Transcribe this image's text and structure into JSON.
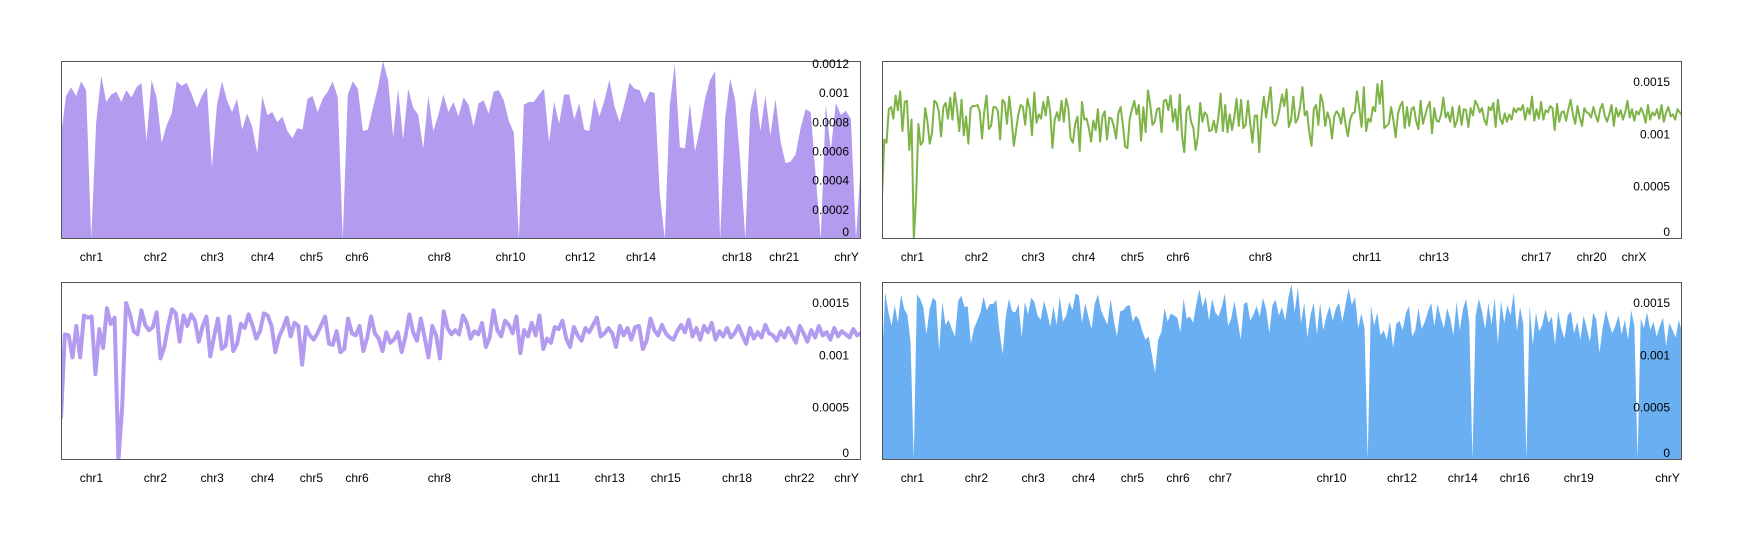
{
  "chart_data": [
    {
      "type": "area",
      "color": "#b39bf0",
      "ylim": [
        0,
        0.00122
      ],
      "yticks": [
        "0",
        "0.0002",
        "0.0004",
        "0.0006",
        "0.0008",
        "0.001",
        "0.0012"
      ],
      "xticks": [
        "chr1",
        "chr2",
        "chr3",
        "chr4",
        "chr5",
        "chr6",
        "chr8",
        "chr10",
        "chr12",
        "chr14",
        "chr18",
        "chr21",
        "chrY"
      ],
      "y": [
        0.00071,
        0.00098,
        0.00104,
        0.00098,
        0.00108,
        0.00102,
        0.0,
        0.0008,
        0.00112,
        0.00094,
        0.00099,
        0.00101,
        0.00094,
        0.00102,
        0.00097,
        0.00104,
        0.00107,
        0.00067,
        0.00109,
        0.00097,
        0.00066,
        0.00078,
        0.00086,
        0.00108,
        0.00105,
        0.00107,
        0.00099,
        0.0009,
        0.00098,
        0.00104,
        0.00049,
        0.00092,
        0.00108,
        0.00095,
        0.00087,
        0.00096,
        0.00075,
        0.00086,
        0.00077,
        0.00059,
        0.00098,
        0.00085,
        0.00087,
        0.0008,
        0.00084,
        0.00074,
        0.00069,
        0.00076,
        0.00075,
        0.00096,
        0.00098,
        0.00087,
        0.00096,
        0.00101,
        0.00108,
        0.00097,
        0.0,
        0.00099,
        0.00108,
        0.00103,
        0.00074,
        0.00075,
        0.0009,
        0.00104,
        0.00122,
        0.00109,
        0.0007,
        0.00103,
        0.00068,
        0.00103,
        0.0009,
        0.00085,
        0.00062,
        0.00098,
        0.00074,
        0.00085,
        0.00099,
        0.00087,
        0.00094,
        0.00084,
        0.00097,
        0.00092,
        0.00077,
        0.00093,
        0.00095,
        0.00086,
        0.00101,
        0.00102,
        0.00095,
        0.00081,
        0.00073,
        0.0,
        0.00092,
        0.00094,
        0.00094,
        0.00099,
        0.00103,
        0.00066,
        0.00094,
        0.00079,
        0.00099,
        0.00099,
        0.00082,
        0.00093,
        0.00075,
        0.00074,
        0.00097,
        0.00084,
        0.00095,
        0.00109,
        0.00091,
        0.0008,
        0.00093,
        0.00107,
        0.00103,
        0.00102,
        0.00093,
        0.00101,
        0.001,
        0.00031,
        0.0,
        0.00092,
        0.0012,
        0.00063,
        0.00062,
        0.00093,
        0.0006,
        0.00076,
        0.00096,
        0.00109,
        0.00115,
        0.0,
        0.00083,
        0.0011,
        0.00095,
        0.00053,
        0.0,
        0.00088,
        0.00104,
        0.00074,
        0.00098,
        0.00071,
        0.00096,
        0.00067,
        0.00052,
        0.00053,
        0.00058,
        0.00076,
        0.00089,
        0.00087,
        0.00043,
        0.0,
        0.00092,
        0.00061,
        0.00093,
        0.00085,
        0.00088,
        0.00082,
        0.0,
        0.00053
      ]
    },
    {
      "type": "line",
      "color": "#7eb347",
      "ylim": [
        0,
        0.0017
      ],
      "yticks": [
        "0",
        "0.0005",
        "0.001",
        "0.0015"
      ],
      "xticks": [
        "chr1",
        "chr2",
        "chr3",
        "chr4",
        "chr5",
        "chr6",
        "chr8",
        "chr11",
        "chr13",
        "chr17",
        "chr20",
        "chrX"
      ],
      "y": [
        0.0004,
        0.00095,
        0.00092,
        0.00124,
        0.00126,
        0.00115,
        0.00137,
        0.00123,
        0.00141,
        0.00103,
        0.00131,
        0.00132,
        0.00085,
        0.00114,
        0.0,
        0.00039,
        0.0011,
        0.0009,
        0.00093,
        0.00125,
        0.00112,
        0.00091,
        0.00101,
        0.00132,
        0.0013,
        0.00122,
        0.00098,
        0.00126,
        0.0013,
        0.00115,
        0.00135,
        0.00114,
        0.0014,
        0.00125,
        0.00103,
        0.00133,
        0.00099,
        0.00117,
        0.00091,
        0.00125,
        0.00127,
        0.00127,
        0.00128,
        0.00122,
        0.00096,
        0.00122,
        0.00137,
        0.00105,
        0.00108,
        0.00126,
        0.00126,
        0.00122,
        0.00095,
        0.00133,
        0.0013,
        0.0011,
        0.00136,
        0.00115,
        0.00089,
        0.00104,
        0.00119,
        0.00128,
        0.00126,
        0.00109,
        0.00134,
        0.00125,
        0.00099,
        0.0014,
        0.00111,
        0.00119,
        0.00115,
        0.00131,
        0.00118,
        0.00136,
        0.00122,
        0.00087,
        0.00114,
        0.00121,
        0.00113,
        0.00132,
        0.00112,
        0.00134,
        0.00125,
        0.00096,
        0.00092,
        0.0011,
        0.00117,
        0.00084,
        0.00131,
        0.00114,
        0.00115,
        0.00106,
        0.00093,
        0.00113,
        0.00104,
        0.00124,
        0.00093,
        0.00117,
        0.00122,
        0.00095,
        0.00116,
        0.00115,
        0.00108,
        0.00096,
        0.0012,
        0.00126,
        0.00109,
        0.00088,
        0.00087,
        0.00115,
        0.00124,
        0.00132,
        0.00119,
        0.00128,
        0.00094,
        0.00126,
        0.00102,
        0.00142,
        0.00129,
        0.00109,
        0.00112,
        0.00124,
        0.00125,
        0.00102,
        0.00132,
        0.00133,
        0.00123,
        0.00137,
        0.00112,
        0.00124,
        0.00104,
        0.00138,
        0.00099,
        0.00083,
        0.00123,
        0.00127,
        0.00112,
        0.00106,
        0.00085,
        0.00098,
        0.0013,
        0.00112,
        0.00121,
        0.00118,
        0.00103,
        0.00104,
        0.00113,
        0.00102,
        0.00116,
        0.00139,
        0.00103,
        0.00128,
        0.00102,
        0.00119,
        0.00104,
        0.00116,
        0.00134,
        0.00108,
        0.00133,
        0.00106,
        0.00109,
        0.00132,
        0.00111,
        0.00092,
        0.00118,
        0.00118,
        0.00083,
        0.00118,
        0.00136,
        0.00116,
        0.00131,
        0.00145,
        0.00111,
        0.00108,
        0.00114,
        0.00125,
        0.00138,
        0.00127,
        0.00143,
        0.00107,
        0.00114,
        0.00136,
        0.00111,
        0.00115,
        0.00127,
        0.00145,
        0.00118,
        0.00122,
        0.00102,
        0.00089,
        0.00124,
        0.00128,
        0.00109,
        0.00138,
        0.0013,
        0.00108,
        0.00121,
        0.00114,
        0.00096,
        0.00117,
        0.00122,
        0.00119,
        0.0011,
        0.00125,
        0.00109,
        0.00098,
        0.00114,
        0.0012,
        0.00121,
        0.00141,
        0.00125,
        0.00107,
        0.00145,
        0.00103,
        0.00115,
        0.00112,
        0.00126,
        0.00122,
        0.00148,
        0.00129,
        0.00151,
        0.00106,
        0.00108,
        0.0011,
        0.00126,
        0.00114,
        0.00097,
        0.00119,
        0.00127,
        0.00131,
        0.00106,
        0.00126,
        0.00108,
        0.00124,
        0.00126,
        0.00113,
        0.00105,
        0.00132,
        0.0011,
        0.00118,
        0.00126,
        0.00131,
        0.00101,
        0.00125,
        0.00113,
        0.00112,
        0.00119,
        0.00135,
        0.00116,
        0.00121,
        0.00112,
        0.00126,
        0.00107,
        0.00113,
        0.00127,
        0.00109,
        0.00124,
        0.00123,
        0.00107,
        0.00125,
        0.00118,
        0.00132,
        0.00128,
        0.00121,
        0.00125,
        0.00114,
        0.00109,
        0.00126,
        0.00123,
        0.0013,
        0.00107,
        0.00133,
        0.00115,
        0.0011,
        0.0012,
        0.00112,
        0.00119,
        0.00114,
        0.00125,
        0.00121,
        0.00125,
        0.00123,
        0.00128,
        0.00114,
        0.00125,
        0.00119,
        0.00136,
        0.00113,
        0.00124,
        0.00115,
        0.00131,
        0.00114,
        0.00123,
        0.00121,
        0.00127,
        0.00125,
        0.00104,
        0.00129,
        0.00112,
        0.00121,
        0.00122,
        0.00113,
        0.00124,
        0.00133,
        0.00119,
        0.0011,
        0.00127,
        0.00116,
        0.00108,
        0.00125,
        0.00121,
        0.0012,
        0.00116,
        0.00126,
        0.00118,
        0.00112,
        0.00124,
        0.00129,
        0.00118,
        0.00112,
        0.00119,
        0.00128,
        0.00108,
        0.00125,
        0.00117,
        0.00123,
        0.00114,
        0.00121,
        0.00132,
        0.00116,
        0.00124,
        0.00113,
        0.00122,
        0.00119,
        0.00125,
        0.0012,
        0.00111,
        0.00128,
        0.00114,
        0.00121,
        0.00118,
        0.00124,
        0.00115,
        0.00128,
        0.00112,
        0.00121,
        0.00126,
        0.00117,
        0.00119,
        0.00114,
        0.00124,
        0.00121,
        0.00118
      ]
    },
    {
      "type": "line",
      "color": "#b39bf0",
      "stroke_width": 4,
      "ylim": [
        0,
        0.0017
      ],
      "yticks": [
        "0",
        "0.0005",
        "0.001",
        "0.0015"
      ],
      "xticks": [
        "chr1",
        "chr2",
        "chr3",
        "chr4",
        "chr5",
        "chr6",
        "chr8",
        "chr11",
        "chr13",
        "chr15",
        "chr18",
        "chr22",
        "chrY"
      ],
      "y": [
        0.0004,
        0.0012,
        0.00119,
        0.00098,
        0.00128,
        0.00098,
        0.00138,
        0.00136,
        0.00137,
        0.00082,
        0.00125,
        0.00107,
        0.00145,
        0.0013,
        0.00136,
        0.0,
        0.00052,
        0.0015,
        0.00139,
        0.00123,
        0.0012,
        0.00143,
        0.00129,
        0.00124,
        0.00127,
        0.00141,
        0.00097,
        0.00108,
        0.00128,
        0.00144,
        0.0014,
        0.00113,
        0.00138,
        0.00128,
        0.00139,
        0.00133,
        0.00113,
        0.00128,
        0.00137,
        0.00099,
        0.00118,
        0.00135,
        0.00106,
        0.00109,
        0.00137,
        0.00104,
        0.00111,
        0.0013,
        0.00126,
        0.00139,
        0.00129,
        0.00116,
        0.00123,
        0.0014,
        0.00138,
        0.00128,
        0.00103,
        0.00118,
        0.00126,
        0.00136,
        0.00118,
        0.00131,
        0.00128,
        0.00091,
        0.00127,
        0.00119,
        0.00115,
        0.00121,
        0.00129,
        0.00137,
        0.00111,
        0.0011,
        0.00123,
        0.00103,
        0.00106,
        0.00135,
        0.00121,
        0.00119,
        0.00128,
        0.00104,
        0.00117,
        0.00137,
        0.00121,
        0.00116,
        0.00104,
        0.00122,
        0.00112,
        0.00115,
        0.00122,
        0.00103,
        0.00118,
        0.00139,
        0.00122,
        0.00114,
        0.00135,
        0.00117,
        0.00098,
        0.00128,
        0.00119,
        0.00097,
        0.00142,
        0.00126,
        0.0012,
        0.00124,
        0.0012,
        0.00138,
        0.00131,
        0.00116,
        0.00123,
        0.0012,
        0.00131,
        0.00108,
        0.00117,
        0.00143,
        0.00124,
        0.00118,
        0.00133,
        0.00129,
        0.00121,
        0.00137,
        0.00102,
        0.00124,
        0.00118,
        0.00131,
        0.00119,
        0.00138,
        0.00106,
        0.00116,
        0.00112,
        0.00127,
        0.00125,
        0.00133,
        0.00116,
        0.00108,
        0.00127,
        0.00119,
        0.00114,
        0.00126,
        0.00122,
        0.00129,
        0.00136,
        0.00118,
        0.00121,
        0.00126,
        0.00121,
        0.00108,
        0.00128,
        0.00119,
        0.00126,
        0.00115,
        0.00127,
        0.00128,
        0.00106,
        0.00114,
        0.00135,
        0.00124,
        0.00119,
        0.00129,
        0.00121,
        0.00117,
        0.00115,
        0.00123,
        0.00129,
        0.00122,
        0.00134,
        0.00118,
        0.00126,
        0.00115,
        0.00128,
        0.00122,
        0.00131,
        0.00115,
        0.00123,
        0.00118,
        0.00126,
        0.00117,
        0.00121,
        0.00128,
        0.00119,
        0.00111,
        0.00126,
        0.00116,
        0.00122,
        0.00117,
        0.00129,
        0.00121,
        0.00119,
        0.00114,
        0.00123,
        0.00117,
        0.00126,
        0.00119,
        0.00112,
        0.00128,
        0.00121,
        0.00113,
        0.00124,
        0.00117,
        0.00128,
        0.00119,
        0.00122,
        0.00115,
        0.00126,
        0.00118,
        0.00123,
        0.0012,
        0.00117,
        0.00125,
        0.00119,
        0.00121
      ]
    },
    {
      "type": "area",
      "color": "#6aaff2",
      "ylim": [
        0,
        0.0017
      ],
      "yticks": [
        "0",
        "0.0005",
        "0.001",
        "0.0015"
      ],
      "xticks": [
        "chr1",
        "chr2",
        "chr3",
        "chr4",
        "chr5",
        "chr6",
        "chr7",
        "chr10",
        "chr12",
        "chr14",
        "chr16",
        "chr19",
        "chrY"
      ],
      "y": [
        0.00095,
        0.0016,
        0.00142,
        0.00128,
        0.00148,
        0.00131,
        0.00158,
        0.00144,
        0.00139,
        0.00112,
        0.0,
        0.00158,
        0.00154,
        0.00146,
        0.0012,
        0.00144,
        0.00155,
        0.00152,
        0.00104,
        0.00151,
        0.00129,
        0.00134,
        0.00125,
        0.00118,
        0.00152,
        0.00157,
        0.00146,
        0.00147,
        0.00111,
        0.00126,
        0.00133,
        0.00141,
        0.00156,
        0.00143,
        0.00149,
        0.00149,
        0.00153,
        0.00123,
        0.00101,
        0.00137,
        0.00154,
        0.00142,
        0.00141,
        0.00149,
        0.00117,
        0.00151,
        0.00139,
        0.00155,
        0.00151,
        0.00138,
        0.00134,
        0.00152,
        0.00141,
        0.00127,
        0.00147,
        0.00129,
        0.00156,
        0.00132,
        0.00138,
        0.00151,
        0.00143,
        0.00159,
        0.00157,
        0.00131,
        0.0015,
        0.00137,
        0.00125,
        0.00149,
        0.00158,
        0.00143,
        0.00136,
        0.00129,
        0.00154,
        0.00134,
        0.00118,
        0.00142,
        0.00143,
        0.00147,
        0.00148,
        0.00132,
        0.00138,
        0.00134,
        0.00123,
        0.00115,
        0.00118,
        0.00101,
        0.00083,
        0.00115,
        0.00122,
        0.00145,
        0.00132,
        0.0014,
        0.00138,
        0.00136,
        0.00122,
        0.00154,
        0.00135,
        0.00137,
        0.00131,
        0.00149,
        0.00163,
        0.00146,
        0.00156,
        0.00133,
        0.00154,
        0.00141,
        0.00137,
        0.00146,
        0.00159,
        0.00128,
        0.00135,
        0.00152,
        0.00134,
        0.00115,
        0.00149,
        0.00151,
        0.00133,
        0.00139,
        0.00147,
        0.00137,
        0.00155,
        0.00144,
        0.00121,
        0.00148,
        0.00153,
        0.00138,
        0.00146,
        0.00133,
        0.00155,
        0.00168,
        0.00141,
        0.00165,
        0.00131,
        0.0015,
        0.00117,
        0.00139,
        0.0015,
        0.0012,
        0.0015,
        0.00124,
        0.00137,
        0.00147,
        0.00133,
        0.00145,
        0.0015,
        0.00132,
        0.00148,
        0.00164,
        0.00148,
        0.00156,
        0.00126,
        0.0014,
        0.00126,
        0.0,
        0.00148,
        0.00128,
        0.00141,
        0.00119,
        0.00124,
        0.00115,
        0.00132,
        0.00107,
        0.0013,
        0.00133,
        0.00124,
        0.0014,
        0.00147,
        0.00118,
        0.00124,
        0.00145,
        0.00125,
        0.00132,
        0.00142,
        0.0015,
        0.00128,
        0.00149,
        0.00136,
        0.00126,
        0.00145,
        0.00135,
        0.00119,
        0.00151,
        0.00124,
        0.00144,
        0.00154,
        0.00131,
        0.0,
        0.00138,
        0.00154,
        0.00142,
        0.00125,
        0.0015,
        0.00129,
        0.00155,
        0.00111,
        0.00152,
        0.00131,
        0.00148,
        0.00138,
        0.0016,
        0.00123,
        0.00146,
        0.0013,
        0.0,
        0.00147,
        0.0011,
        0.00141,
        0.00123,
        0.00129,
        0.00144,
        0.00131,
        0.00137,
        0.0011,
        0.00142,
        0.00125,
        0.00116,
        0.00138,
        0.00142,
        0.00121,
        0.00132,
        0.00115,
        0.00138,
        0.00126,
        0.00113,
        0.00141,
        0.00134,
        0.00102,
        0.00126,
        0.00143,
        0.00131,
        0.00121,
        0.00128,
        0.00138,
        0.0012,
        0.00134,
        0.00115,
        0.00143,
        0.00128,
        0.0,
        0.00135,
        0.00126,
        0.00141,
        0.00124,
        0.00132,
        0.00118,
        0.00128,
        0.00136,
        0.00109,
        0.00131,
        0.00124,
        0.00117,
        0.00134,
        0.00122
      ]
    }
  ]
}
